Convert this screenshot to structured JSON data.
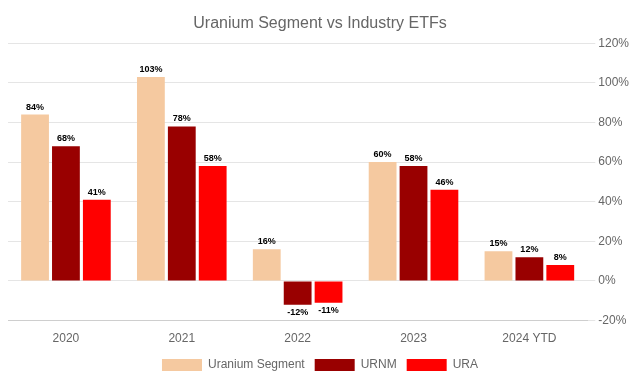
{
  "chart_data": {
    "type": "bar",
    "title": "Uranium Segment vs Industry ETFs",
    "categories": [
      "2020",
      "2021",
      "2022",
      "2023",
      "2024 YTD"
    ],
    "series": [
      {
        "name": "Uranium Segment",
        "color": "#F5C9A0",
        "values": [
          84,
          103,
          16,
          60,
          15
        ],
        "value_labels": [
          "84%",
          "103%",
          "16%",
          "60%",
          "15%"
        ]
      },
      {
        "name": "URNM",
        "color": "#990000",
        "values": [
          68,
          78,
          -12,
          58,
          12
        ],
        "value_labels": [
          "68%",
          "78%",
          "-12%",
          "58%",
          "12%"
        ]
      },
      {
        "name": "URA",
        "color": "#FF0000",
        "values": [
          41,
          58,
          -11,
          46,
          8
        ],
        "value_labels": [
          "41%",
          "58%",
          "-11%",
          "46%",
          "8%"
        ]
      }
    ],
    "ylim": [
      -20,
      120
    ],
    "yticks": [
      {
        "value": -20,
        "label": "-20%"
      },
      {
        "value": 0,
        "label": "0%"
      },
      {
        "value": 20,
        "label": "20%"
      },
      {
        "value": 40,
        "label": "40%"
      },
      {
        "value": 60,
        "label": "60%"
      },
      {
        "value": 80,
        "label": "80%"
      },
      {
        "value": 100,
        "label": "100%"
      },
      {
        "value": 120,
        "label": "120%"
      }
    ],
    "grid": true,
    "legend": "bottom",
    "data_labels": true
  }
}
